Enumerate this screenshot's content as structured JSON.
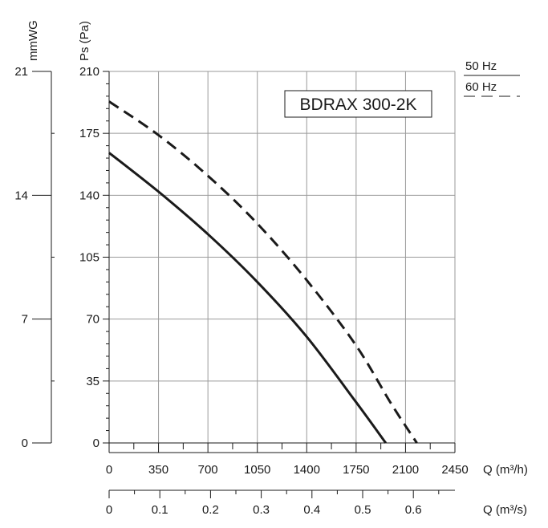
{
  "chart_data": {
    "type": "line",
    "model_label": "BDRAX 300-2K",
    "x_axis": {
      "label": "Q (m³/h)",
      "range": [
        0,
        2450
      ],
      "ticks": [
        0,
        350,
        700,
        1050,
        1400,
        1750,
        2100,
        2450
      ],
      "tick_labels": [
        "0",
        "350",
        "700",
        "1050",
        "1400",
        "1750",
        "2100",
        "2450"
      ]
    },
    "x2_axis": {
      "label": "Q (m³/s)",
      "ticks": [
        0,
        0.1,
        0.2,
        0.3,
        0.4,
        0.5,
        0.6
      ],
      "tick_labels": [
        "0",
        "0.1",
        "0.2",
        "0.3",
        "0.4",
        "0.5",
        "0.6"
      ]
    },
    "y_axis": {
      "label": "Ps (Pa)",
      "range": [
        0,
        210
      ],
      "ticks": [
        0,
        35,
        70,
        105,
        140,
        175,
        210
      ],
      "tick_labels": [
        "0",
        "35",
        "70",
        "105",
        "140",
        "175",
        "210"
      ]
    },
    "y2_axis": {
      "label": "mmWG",
      "range": [
        0,
        21
      ],
      "ticks": [
        0,
        7,
        14,
        21
      ],
      "tick_labels": [
        "0",
        "7",
        "14",
        "21"
      ]
    },
    "grid": true,
    "legend_position": "top-right, outside plot",
    "series": [
      {
        "name": "50 Hz",
        "style": "solid",
        "color": "#1a1a1a",
        "x": [
          0,
          350,
          700,
          1050,
          1400,
          1750,
          1960
        ],
        "y": [
          164,
          142,
          118,
          91,
          60,
          23,
          0
        ]
      },
      {
        "name": "60 Hz",
        "style": "dashed",
        "color": "#1a1a1a",
        "x": [
          0,
          350,
          700,
          1050,
          1400,
          1750,
          2000,
          2180
        ],
        "y": [
          193,
          174,
          151,
          124,
          92,
          55,
          22,
          0
        ]
      }
    ]
  }
}
